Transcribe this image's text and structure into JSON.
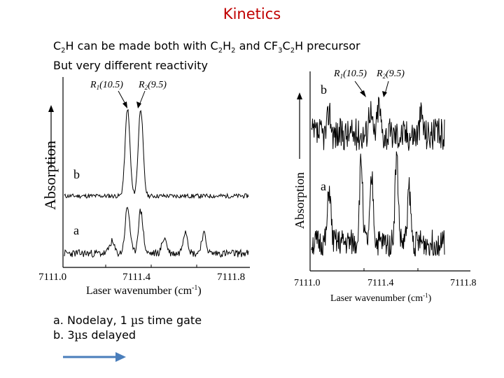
{
  "slide": {
    "title": "Kinetics",
    "line1": {
      "a": "C",
      "b": "2",
      "c": "H can be made both with C",
      "d": "2",
      "e": "H",
      "f": "2",
      "g": " and CF",
      "h": "3",
      "i": "C",
      "j": "2",
      "k": "H precursor"
    },
    "line2": "But very different reactivity",
    "notes": {
      "a_pre": "a. Nodelay, 1 ",
      "a_mu": "µ",
      "a_post": "s time gate",
      "b_pre": "b. 3",
      "b_mu": "µ",
      "b_post": "s delayed"
    },
    "arrow_color": "#4a7ebb"
  },
  "figures": {
    "left": {
      "ylabel": "Absorption",
      "xlabel": "Laser wavenumber (cm",
      "xlabel_sup": "-1",
      "xlabel_end": ")",
      "ticks": [
        "7111.0",
        "7111.4",
        "7111.8"
      ],
      "trace_labels": [
        "b",
        "a"
      ],
      "r1": {
        "sym": "R",
        "sub": "1",
        "val": "(10.5)"
      },
      "r2": {
        "sym": "R",
        "sub": "2",
        "val": "(9.5)"
      }
    },
    "right": {
      "ylabel": "Absorption",
      "xlabel": "Laser wavenumber (cm",
      "xlabel_sup": "-1",
      "xlabel_end": ")",
      "ticks": [
        "7111.0",
        "7111.4",
        "7111.8"
      ],
      "trace_labels": [
        "b",
        "a"
      ],
      "r1": {
        "sym": "R",
        "sub": "1",
        "val": "(10.5)"
      },
      "r2": {
        "sym": "R",
        "sub": "2",
        "val": "(9.5)"
      }
    }
  },
  "chart_data": [
    {
      "type": "line",
      "ylabel": "Absorption",
      "xlabel": "Laser wavenumber (cm-1)",
      "xlim": [
        7111.0,
        7111.8
      ],
      "x_ticks": [
        7111.0,
        7111.4,
        7111.8
      ],
      "annotations": [
        "R1(10.5)",
        "R2(9.5)"
      ],
      "series": [
        {
          "name": "b",
          "peaks": [
            {
              "x": 7111.24,
              "rel_height": 1.0
            },
            {
              "x": 7111.29,
              "rel_height": 1.0
            }
          ]
        },
        {
          "name": "a",
          "peaks": [
            {
              "x": 7111.24,
              "rel_height": 0.6
            },
            {
              "x": 7111.29,
              "rel_height": 0.55
            },
            {
              "x": 7111.18,
              "rel_height": 0.15
            },
            {
              "x": 7111.38,
              "rel_height": 0.2
            },
            {
              "x": 7111.46,
              "rel_height": 0.3
            },
            {
              "x": 7111.53,
              "rel_height": 0.25
            }
          ]
        }
      ]
    },
    {
      "type": "line",
      "ylabel": "Absorption",
      "xlabel": "Laser wavenumber (cm-1)",
      "xlim": [
        7111.0,
        7111.8
      ],
      "x_ticks": [
        7111.0,
        7111.4,
        7111.8
      ],
      "annotations": [
        "R1(10.5)",
        "R2(9.5)"
      ],
      "series": [
        {
          "name": "b",
          "peaks": [
            {
              "x": 7111.1,
              "rel_height": 0.4
            },
            {
              "x": 7111.33,
              "rel_height": 0.45
            },
            {
              "x": 7111.38,
              "rel_height": 0.5
            },
            {
              "x": 7111.62,
              "rel_height": 0.35
            }
          ]
        },
        {
          "name": "a",
          "peaks": [
            {
              "x": 7111.1,
              "rel_height": 0.6
            },
            {
              "x": 7111.28,
              "rel_height": 0.9
            },
            {
              "x": 7111.34,
              "rel_height": 0.7
            },
            {
              "x": 7111.48,
              "rel_height": 0.95
            },
            {
              "x": 7111.55,
              "rel_height": 0.6
            }
          ]
        }
      ]
    }
  ]
}
